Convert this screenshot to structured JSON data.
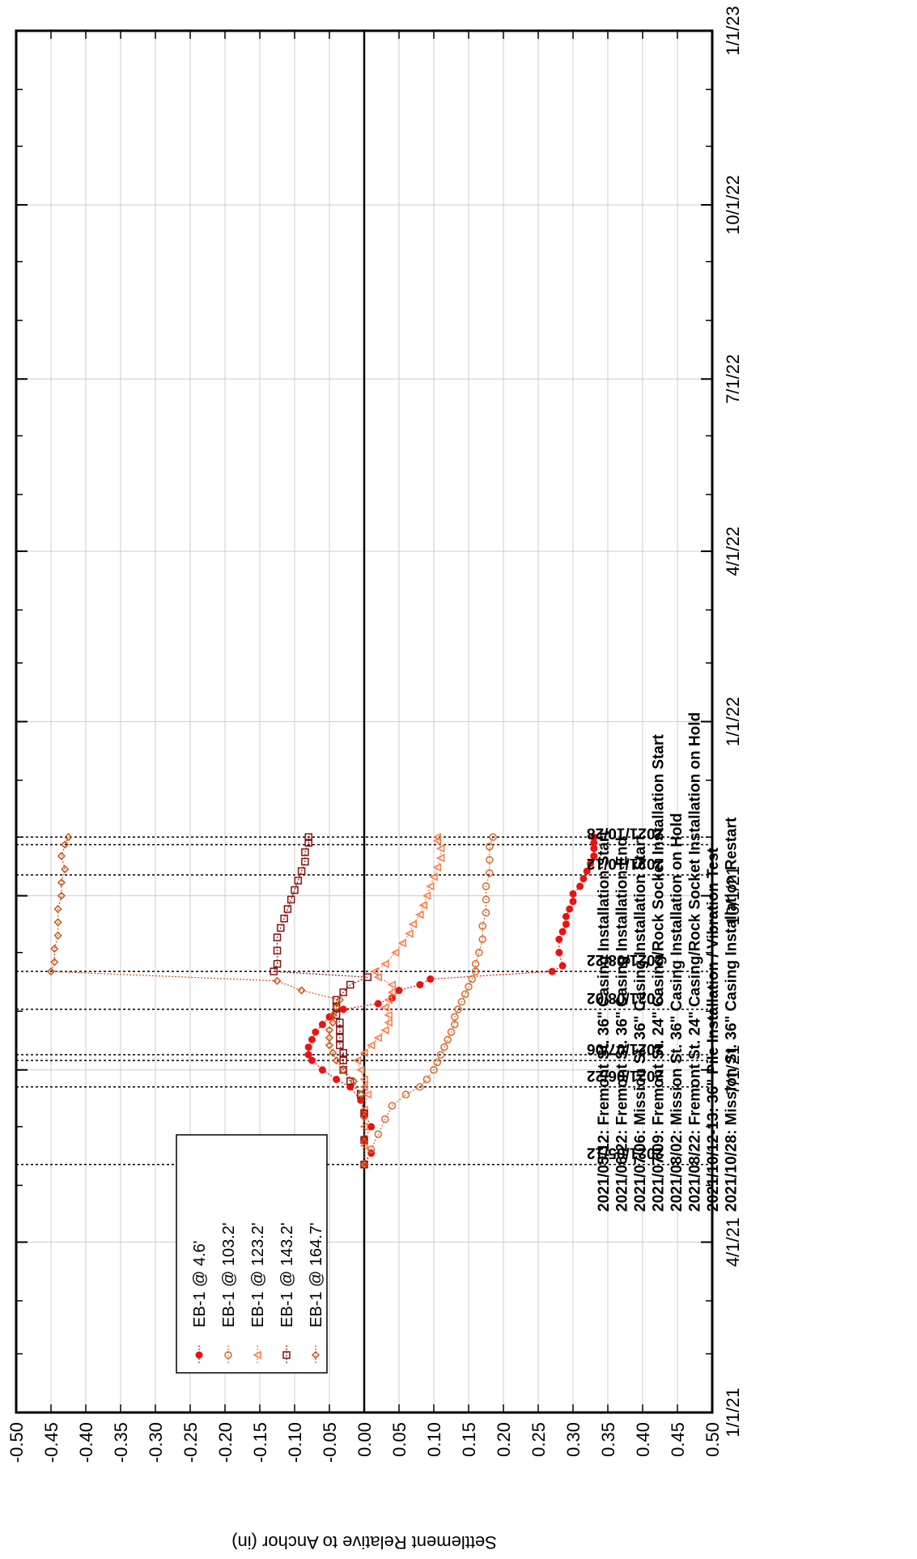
{
  "chart_data": {
    "type": "scatter",
    "title": "",
    "ylabel": "Settlement Relative to Anchor (in)",
    "xlabel": "",
    "grid": true,
    "legend_placement": "top-left (rotated)",
    "settlement_range": [
      -0.5,
      0.5
    ],
    "settlement_ticks": [
      "-0.50",
      "-0.45",
      "-0.40",
      "-0.35",
      "-0.30",
      "-0.25",
      "-0.20",
      "-0.15",
      "-0.10",
      "-0.05",
      "0.00",
      "0.05",
      "0.10",
      "0.15",
      "0.20",
      "0.25",
      "0.30",
      "0.35",
      "0.40",
      "0.45",
      "0.50"
    ],
    "date_range": [
      "2021-01-01",
      "2023-01-01"
    ],
    "date_ticks": [
      {
        "date": "2021-01-01",
        "label": "1/1/21"
      },
      {
        "date": "2021-04-01",
        "label": "4/1/21"
      },
      {
        "date": "2021-07-01",
        "label": "7/1/21"
      },
      {
        "date": "2021-10-01",
        "label": "10/1/21"
      },
      {
        "date": "2022-01-01",
        "label": "1/1/22"
      },
      {
        "date": "2022-04-01",
        "label": "4/1/22"
      },
      {
        "date": "2022-07-01",
        "label": "7/1/22"
      },
      {
        "date": "2022-10-01",
        "label": "10/1/22"
      },
      {
        "date": "2023-01-01",
        "label": "1/1/23"
      }
    ],
    "event_lines": [
      {
        "date": "2021-05-12",
        "label": "2021/05/12"
      },
      {
        "date": "2021-06-22",
        "label": "2021/06/22"
      },
      {
        "date": "2021-07-06",
        "label": "2021/07/06"
      },
      {
        "date": "2021-07-09",
        "label": ""
      },
      {
        "date": "2021-08-02",
        "label": "2021/08/02"
      },
      {
        "date": "2021-08-22",
        "label": "2021/08/22"
      },
      {
        "date": "2021-10-12",
        "label": "2021/10/12"
      },
      {
        "date": "2021-10-28",
        "label": "2021/10/28"
      },
      {
        "date": "2021-11-01",
        "label": ""
      }
    ],
    "notes": [
      "2021/05/12: Fremont St. 36\" Casing Installation Start",
      "2021/06/22: Fremont St. 36\" Casing Installation End",
      "2021/07/06: Mission St.  36\" Casing Installation Start",
      "2021/07/09: Fremont St. 24\" Casing/Rock Socket Installation Start",
      "2021/08/02: Mission St.  36\" Casing Installation on Hold",
      "2021/08/22: Fremont St. 24\" Casing/Rock Socket Installation on Hold",
      "2021/10/12-13: 36\" Pile Installation / Vibration Test",
      "2021/10/28: Mission St.  36\" Casing Installation Restart"
    ],
    "series": [
      {
        "name": "EB-1 @ 4.6'",
        "color": "#ee1111",
        "marker": "circle-filled",
        "points": [
          [
            "2021-05-12",
            0.0
          ],
          [
            "2021-05-18",
            0.01
          ],
          [
            "2021-05-25",
            0.0
          ],
          [
            "2021-06-01",
            0.01
          ],
          [
            "2021-06-08",
            0.0
          ],
          [
            "2021-06-15",
            -0.005
          ],
          [
            "2021-06-22",
            -0.02
          ],
          [
            "2021-06-26",
            -0.04
          ],
          [
            "2021-07-01",
            -0.06
          ],
          [
            "2021-07-06",
            -0.075
          ],
          [
            "2021-07-09",
            -0.08
          ],
          [
            "2021-07-13",
            -0.08
          ],
          [
            "2021-07-17",
            -0.075
          ],
          [
            "2021-07-21",
            -0.07
          ],
          [
            "2021-07-25",
            -0.06
          ],
          [
            "2021-07-29",
            -0.05
          ],
          [
            "2021-08-02",
            -0.03
          ],
          [
            "2021-08-05",
            0.02
          ],
          [
            "2021-08-08",
            0.04
          ],
          [
            "2021-08-12",
            0.05
          ],
          [
            "2021-08-15",
            0.08
          ],
          [
            "2021-08-18",
            0.095
          ],
          [
            "2021-08-22",
            0.27
          ],
          [
            "2021-08-25",
            0.285
          ],
          [
            "2021-09-01",
            0.28
          ],
          [
            "2021-09-08",
            0.28
          ],
          [
            "2021-09-12",
            0.285
          ],
          [
            "2021-09-16",
            0.29
          ],
          [
            "2021-09-20",
            0.29
          ],
          [
            "2021-09-24",
            0.295
          ],
          [
            "2021-09-28",
            0.3
          ],
          [
            "2021-10-02",
            0.3
          ],
          [
            "2021-10-06",
            0.31
          ],
          [
            "2021-10-10",
            0.315
          ],
          [
            "2021-10-14",
            0.32
          ],
          [
            "2021-10-18",
            0.325
          ],
          [
            "2021-10-22",
            0.33
          ],
          [
            "2021-10-26",
            0.33
          ],
          [
            "2021-10-29",
            0.33
          ],
          [
            "2021-11-01",
            0.33
          ]
        ]
      },
      {
        "name": "EB-1 @ 103.2'",
        "color": "#d86a2e",
        "marker": "circle-open",
        "points": [
          [
            "2021-05-12",
            0.0
          ],
          [
            "2021-05-20",
            0.01
          ],
          [
            "2021-05-28",
            0.02
          ],
          [
            "2021-06-05",
            0.03
          ],
          [
            "2021-06-12",
            0.04
          ],
          [
            "2021-06-18",
            0.06
          ],
          [
            "2021-06-22",
            0.08
          ],
          [
            "2021-06-26",
            0.09
          ],
          [
            "2021-07-01",
            0.1
          ],
          [
            "2021-07-05",
            0.105
          ],
          [
            "2021-07-09",
            0.11
          ],
          [
            "2021-07-13",
            0.115
          ],
          [
            "2021-07-17",
            0.12
          ],
          [
            "2021-07-21",
            0.125
          ],
          [
            "2021-07-25",
            0.13
          ],
          [
            "2021-07-29",
            0.13
          ],
          [
            "2021-08-02",
            0.135
          ],
          [
            "2021-08-06",
            0.14
          ],
          [
            "2021-08-10",
            0.145
          ],
          [
            "2021-08-14",
            0.15
          ],
          [
            "2021-08-18",
            0.155
          ],
          [
            "2021-08-22",
            0.16
          ],
          [
            "2021-08-26",
            0.16
          ],
          [
            "2021-09-01",
            0.165
          ],
          [
            "2021-09-08",
            0.17
          ],
          [
            "2021-09-15",
            0.17
          ],
          [
            "2021-09-22",
            0.175
          ],
          [
            "2021-09-29",
            0.175
          ],
          [
            "2021-10-06",
            0.175
          ],
          [
            "2021-10-13",
            0.18
          ],
          [
            "2021-10-20",
            0.18
          ],
          [
            "2021-10-27",
            0.18
          ],
          [
            "2021-11-01",
            0.185
          ]
        ]
      },
      {
        "name": "EB-1 @ 123.2'",
        "color": "#ff7744",
        "marker": "triangle-open",
        "points": [
          [
            "2021-05-12",
            0.0
          ],
          [
            "2021-05-22",
            0.0
          ],
          [
            "2021-06-01",
            0.0
          ],
          [
            "2021-06-10",
            0.0
          ],
          [
            "2021-06-18",
            0.005
          ],
          [
            "2021-06-22",
            0.0
          ],
          [
            "2021-06-26",
            0.0
          ],
          [
            "2021-07-01",
            -0.005
          ],
          [
            "2021-07-06",
            -0.01
          ],
          [
            "2021-07-10",
            0.0
          ],
          [
            "2021-07-14",
            0.01
          ],
          [
            "2021-07-18",
            0.02
          ],
          [
            "2021-07-22",
            0.03
          ],
          [
            "2021-07-26",
            0.035
          ],
          [
            "2021-07-30",
            0.035
          ],
          [
            "2021-08-03",
            0.03
          ],
          [
            "2021-08-07",
            0.035
          ],
          [
            "2021-08-11",
            0.04
          ],
          [
            "2021-08-15",
            0.04
          ],
          [
            "2021-08-19",
            0.02
          ],
          [
            "2021-08-22",
            0.015
          ],
          [
            "2021-08-26",
            0.03
          ],
          [
            "2021-09-01",
            0.045
          ],
          [
            "2021-09-06",
            0.055
          ],
          [
            "2021-09-11",
            0.065
          ],
          [
            "2021-09-16",
            0.07
          ],
          [
            "2021-09-21",
            0.08
          ],
          [
            "2021-09-26",
            0.085
          ],
          [
            "2021-10-01",
            0.09
          ],
          [
            "2021-10-06",
            0.095
          ],
          [
            "2021-10-11",
            0.1
          ],
          [
            "2021-10-16",
            0.105
          ],
          [
            "2021-10-21",
            0.11
          ],
          [
            "2021-10-26",
            0.11
          ],
          [
            "2021-10-30",
            0.105
          ],
          [
            "2021-11-01",
            0.105
          ]
        ]
      },
      {
        "name": "EB-1 @ 143.2'",
        "color": "#8b1010",
        "marker": "square-open",
        "points": [
          [
            "2021-05-12",
            0.0
          ],
          [
            "2021-05-25",
            0.0
          ],
          [
            "2021-06-08",
            0.0
          ],
          [
            "2021-06-18",
            -0.005
          ],
          [
            "2021-06-25",
            -0.02
          ],
          [
            "2021-07-01",
            -0.03
          ],
          [
            "2021-07-06",
            -0.03
          ],
          [
            "2021-07-10",
            -0.03
          ],
          [
            "2021-07-14",
            -0.035
          ],
          [
            "2021-07-18",
            -0.035
          ],
          [
            "2021-07-22",
            -0.035
          ],
          [
            "2021-07-26",
            -0.035
          ],
          [
            "2021-07-30",
            -0.04
          ],
          [
            "2021-08-03",
            -0.04
          ],
          [
            "2021-08-07",
            -0.04
          ],
          [
            "2021-08-11",
            -0.03
          ],
          [
            "2021-08-15",
            -0.02
          ],
          [
            "2021-08-19",
            0.005
          ],
          [
            "2021-08-22",
            -0.13
          ],
          [
            "2021-08-26",
            -0.125
          ],
          [
            "2021-09-02",
            -0.125
          ],
          [
            "2021-09-09",
            -0.125
          ],
          [
            "2021-09-14",
            -0.12
          ],
          [
            "2021-09-19",
            -0.115
          ],
          [
            "2021-09-24",
            -0.11
          ],
          [
            "2021-09-29",
            -0.105
          ],
          [
            "2021-10-04",
            -0.1
          ],
          [
            "2021-10-09",
            -0.095
          ],
          [
            "2021-10-14",
            -0.09
          ],
          [
            "2021-10-19",
            -0.085
          ],
          [
            "2021-10-24",
            -0.085
          ],
          [
            "2021-10-29",
            -0.08
          ],
          [
            "2021-11-01",
            -0.08
          ]
        ]
      },
      {
        "name": "EB-1 @ 164.7'",
        "color": "#c9541a",
        "marker": "diamond-open",
        "points": [
          [
            "2021-05-12",
            0.0
          ],
          [
            "2021-05-24",
            0.0
          ],
          [
            "2021-06-06",
            0.0
          ],
          [
            "2021-06-18",
            -0.005
          ],
          [
            "2021-06-25",
            -0.015
          ],
          [
            "2021-07-01",
            -0.03
          ],
          [
            "2021-07-06",
            -0.04
          ],
          [
            "2021-07-10",
            -0.045
          ],
          [
            "2021-07-14",
            -0.05
          ],
          [
            "2021-07-18",
            -0.05
          ],
          [
            "2021-07-22",
            -0.05
          ],
          [
            "2021-07-26",
            -0.045
          ],
          [
            "2021-07-30",
            -0.045
          ],
          [
            "2021-08-03",
            -0.04
          ],
          [
            "2021-08-07",
            -0.035
          ],
          [
            "2021-08-12",
            -0.09
          ],
          [
            "2021-08-17",
            -0.125
          ],
          [
            "2021-08-22",
            -0.45
          ],
          [
            "2021-08-27",
            -0.445
          ],
          [
            "2021-09-03",
            -0.445
          ],
          [
            "2021-09-10",
            -0.44
          ],
          [
            "2021-09-17",
            -0.44
          ],
          [
            "2021-09-24",
            -0.44
          ],
          [
            "2021-10-01",
            -0.435
          ],
          [
            "2021-10-08",
            -0.435
          ],
          [
            "2021-10-15",
            -0.43
          ],
          [
            "2021-10-22",
            -0.435
          ],
          [
            "2021-10-28",
            -0.43
          ],
          [
            "2021-11-01",
            -0.425
          ]
        ]
      }
    ]
  }
}
